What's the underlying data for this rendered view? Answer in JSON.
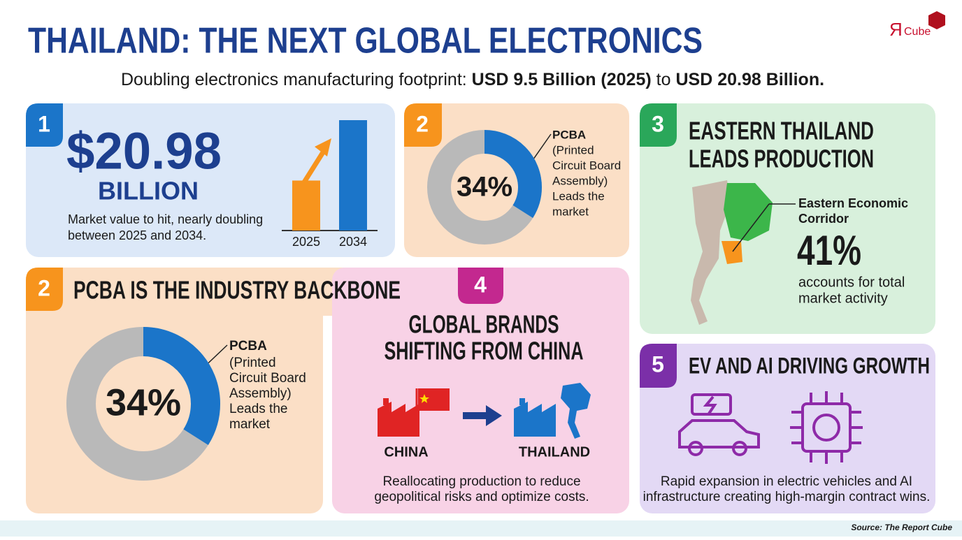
{
  "header": {
    "title": "THAILAND: THE NEXT GLOBAL ELECTRONICS",
    "lead": "Doubling electronics manufacturing footprint:",
    "from": "USD 9.5 Billion (2025)",
    "joiner": "to",
    "to": "USD 20.98 Billion.",
    "logo_mark": "Я",
    "logo": "Cube"
  },
  "market": {
    "badge": "1",
    "amount": "$20.98",
    "unit": "BILLION",
    "text_lines": [
      "Market value to hit, nearly doubling",
      "between 2025 and 2034."
    ],
    "chart": {
      "type": "bar",
      "categories": [
        "2025",
        "2034"
      ],
      "values": [
        9.5,
        20.98
      ],
      "colors": [
        "#f7941d",
        "#1b75c9"
      ]
    }
  },
  "pcba_small": {
    "badge": "2",
    "value": 34,
    "value_label": "34%",
    "name": "PCBA",
    "text_lines": [
      "(Printed",
      "Circuit Board",
      "Assembly)",
      "Leads the",
      "market"
    ]
  },
  "eastern": {
    "badge": "3",
    "title_lines": [
      "EASTERN THAILAND",
      "LEADS PRODUCTION"
    ],
    "callout_lines": [
      "Eastern Economic",
      "Corridor"
    ],
    "value": 41,
    "value_label": "41%",
    "text_lines": [
      "accounts for total",
      "market activity"
    ]
  },
  "pcba": {
    "badge": "2",
    "title": "PCBA IS THE INDUSTRY BACKBONE",
    "value": 34,
    "value_label": "34%",
    "name": "PCBA",
    "text_lines": [
      "(Printed",
      "Circuit Board",
      "Assembly)",
      "Leads the",
      "market"
    ]
  },
  "shift": {
    "badge": "4",
    "title_lines": [
      "GLOBAL BRANDS",
      "SHIFTING FROM CHINA"
    ],
    "from": "CHINA",
    "to": "THAILAND",
    "text_lines": [
      "Reallocating production to reduce",
      "geopolitical risks and optimize costs."
    ]
  },
  "growth": {
    "badge": "5",
    "title": "EV AND AI DRIVING GROWTH",
    "text_lines": [
      "Rapid expansion in electric vehicles and AI",
      "infrastructure creating high-margin contract wins."
    ]
  },
  "footer": {
    "source": "Source: The Report Cube"
  }
}
